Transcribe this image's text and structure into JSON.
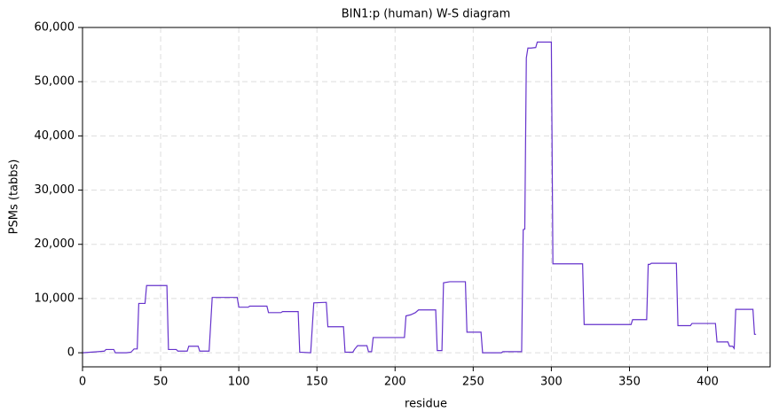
{
  "chart_data": {
    "type": "line",
    "title": "BIN1:p (human) W-S diagram",
    "x_label": "residue",
    "y_label": "PSMs (tabbs)",
    "xlim": [
      0,
      440
    ],
    "ylim": [
      -2600,
      60000
    ],
    "xticks": [
      0,
      50,
      100,
      150,
      200,
      250,
      300,
      350,
      400
    ],
    "yticks": [
      0,
      {
        "value": 10000,
        "label": "10,000"
      },
      {
        "value": 20000,
        "label": "20,000"
      },
      {
        "value": 30000,
        "label": "30,000"
      },
      {
        "value": 40000,
        "label": "40,000"
      },
      {
        "value": 50000,
        "label": "50,000"
      },
      {
        "value": 60000,
        "label": "60,000"
      }
    ],
    "grid": true,
    "x": [
      0,
      5,
      10,
      14,
      15,
      20,
      21,
      28,
      31,
      33,
      35,
      36,
      40,
      41,
      54,
      55,
      60,
      61,
      67,
      68,
      74,
      75,
      81,
      83,
      99,
      100,
      106,
      107,
      118,
      119,
      127,
      128,
      138,
      139,
      146,
      148,
      156,
      157,
      167,
      168,
      173,
      174,
      176,
      182,
      183,
      185,
      186,
      206,
      207,
      210,
      213,
      215,
      226,
      227,
      230,
      231,
      235,
      245,
      246,
      255,
      256,
      268,
      269,
      281,
      282,
      283,
      284,
      285,
      287,
      290,
      291,
      300,
      301,
      320,
      321,
      351,
      352,
      361,
      362,
      363,
      364,
      380,
      381,
      389,
      390,
      405,
      406,
      413,
      414,
      416,
      417,
      418,
      429,
      430,
      431
    ],
    "series": [
      {
        "name": "BIN1",
        "color": "#6633cc",
        "values": [
          0,
          100,
          200,
          300,
          600,
          600,
          0,
          0,
          100,
          700,
          700,
          9100,
          9100,
          12400,
          12400,
          600,
          600,
          300,
          300,
          1200,
          1200,
          300,
          300,
          10200,
          10200,
          8400,
          8400,
          8600,
          8600,
          7400,
          7400,
          7600,
          7600,
          100,
          0,
          9200,
          9300,
          4800,
          4800,
          100,
          100,
          600,
          1300,
          1300,
          200,
          200,
          2800,
          2800,
          6800,
          7000,
          7400,
          7900,
          7900,
          400,
          400,
          12900,
          13100,
          13100,
          3800,
          3800,
          0,
          0,
          200,
          200,
          22700,
          22800,
          54400,
          56200,
          56200,
          56300,
          57300,
          57300,
          16400,
          16400,
          5200,
          5200,
          6100,
          6100,
          16300,
          16300,
          16500,
          16500,
          5000,
          5000,
          5400,
          5400,
          2000,
          2000,
          1200,
          1200,
          800,
          8000,
          8000,
          3400,
          3400
        ]
      }
    ]
  }
}
